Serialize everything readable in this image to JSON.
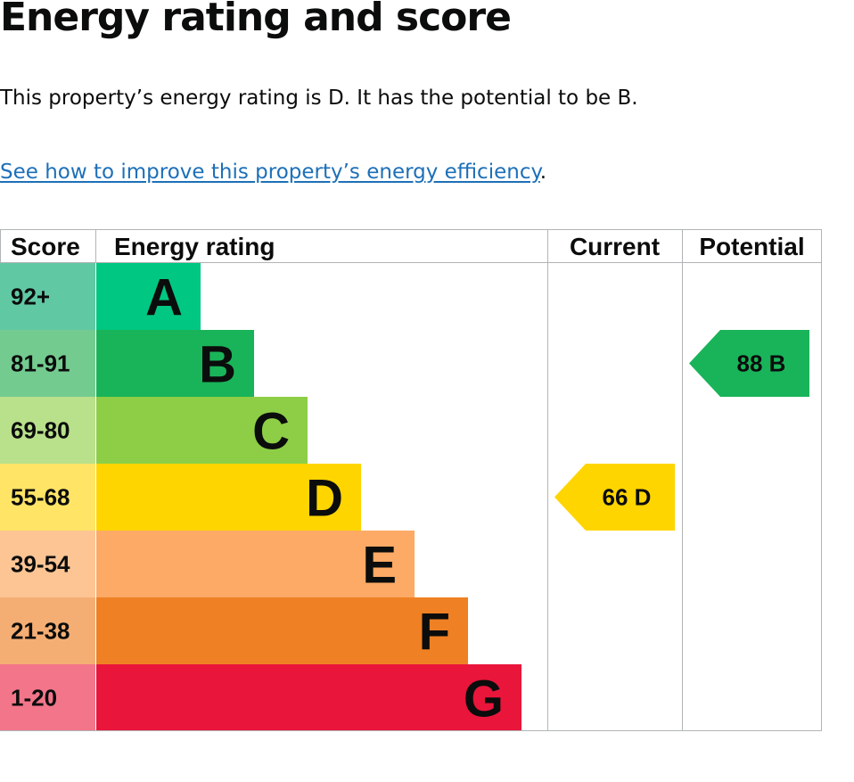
{
  "page": {
    "heading": "Energy rating and score",
    "summary": "This property’s energy rating is D. It has the potential to be B.",
    "improve_link": "See how to improve this property’s energy efficiency",
    "improve_suffix": "."
  },
  "chart_data": {
    "type": "bar",
    "columns": [
      "Score",
      "Energy rating",
      "Current",
      "Potential"
    ],
    "bands": [
      {
        "letter": "A",
        "range": "92+",
        "color": "#008054",
        "score_color": "#61c8a4",
        "bar_color": "#00c781"
      },
      {
        "letter": "B",
        "range": "81-91",
        "color": "#19b459",
        "score_color": "#74cb8f",
        "bar_color": "#19b459"
      },
      {
        "letter": "C",
        "range": "69-80",
        "color": "#8dce46",
        "score_color": "#b9e08a",
        "bar_color": "#8dce46"
      },
      {
        "letter": "D",
        "range": "55-68",
        "color": "#ffd500",
        "score_color": "#ffe466",
        "bar_color": "#ffd500"
      },
      {
        "letter": "E",
        "range": "39-54",
        "color": "#fcaa65",
        "score_color": "#fdc594",
        "bar_color": "#fcaa65"
      },
      {
        "letter": "F",
        "range": "21-38",
        "color": "#ef8023",
        "score_color": "#f4ae74",
        "bar_color": "#ef8023"
      },
      {
        "letter": "G",
        "range": "1-20",
        "color": "#e9153b",
        "score_color": "#f27589",
        "bar_color": "#e9153b"
      }
    ],
    "current": {
      "score": 66,
      "letter": "D",
      "label": "66  D",
      "color": "#ffd500"
    },
    "potential": {
      "score": 88,
      "letter": "B",
      "label": "88  B",
      "color": "#19b459"
    }
  }
}
